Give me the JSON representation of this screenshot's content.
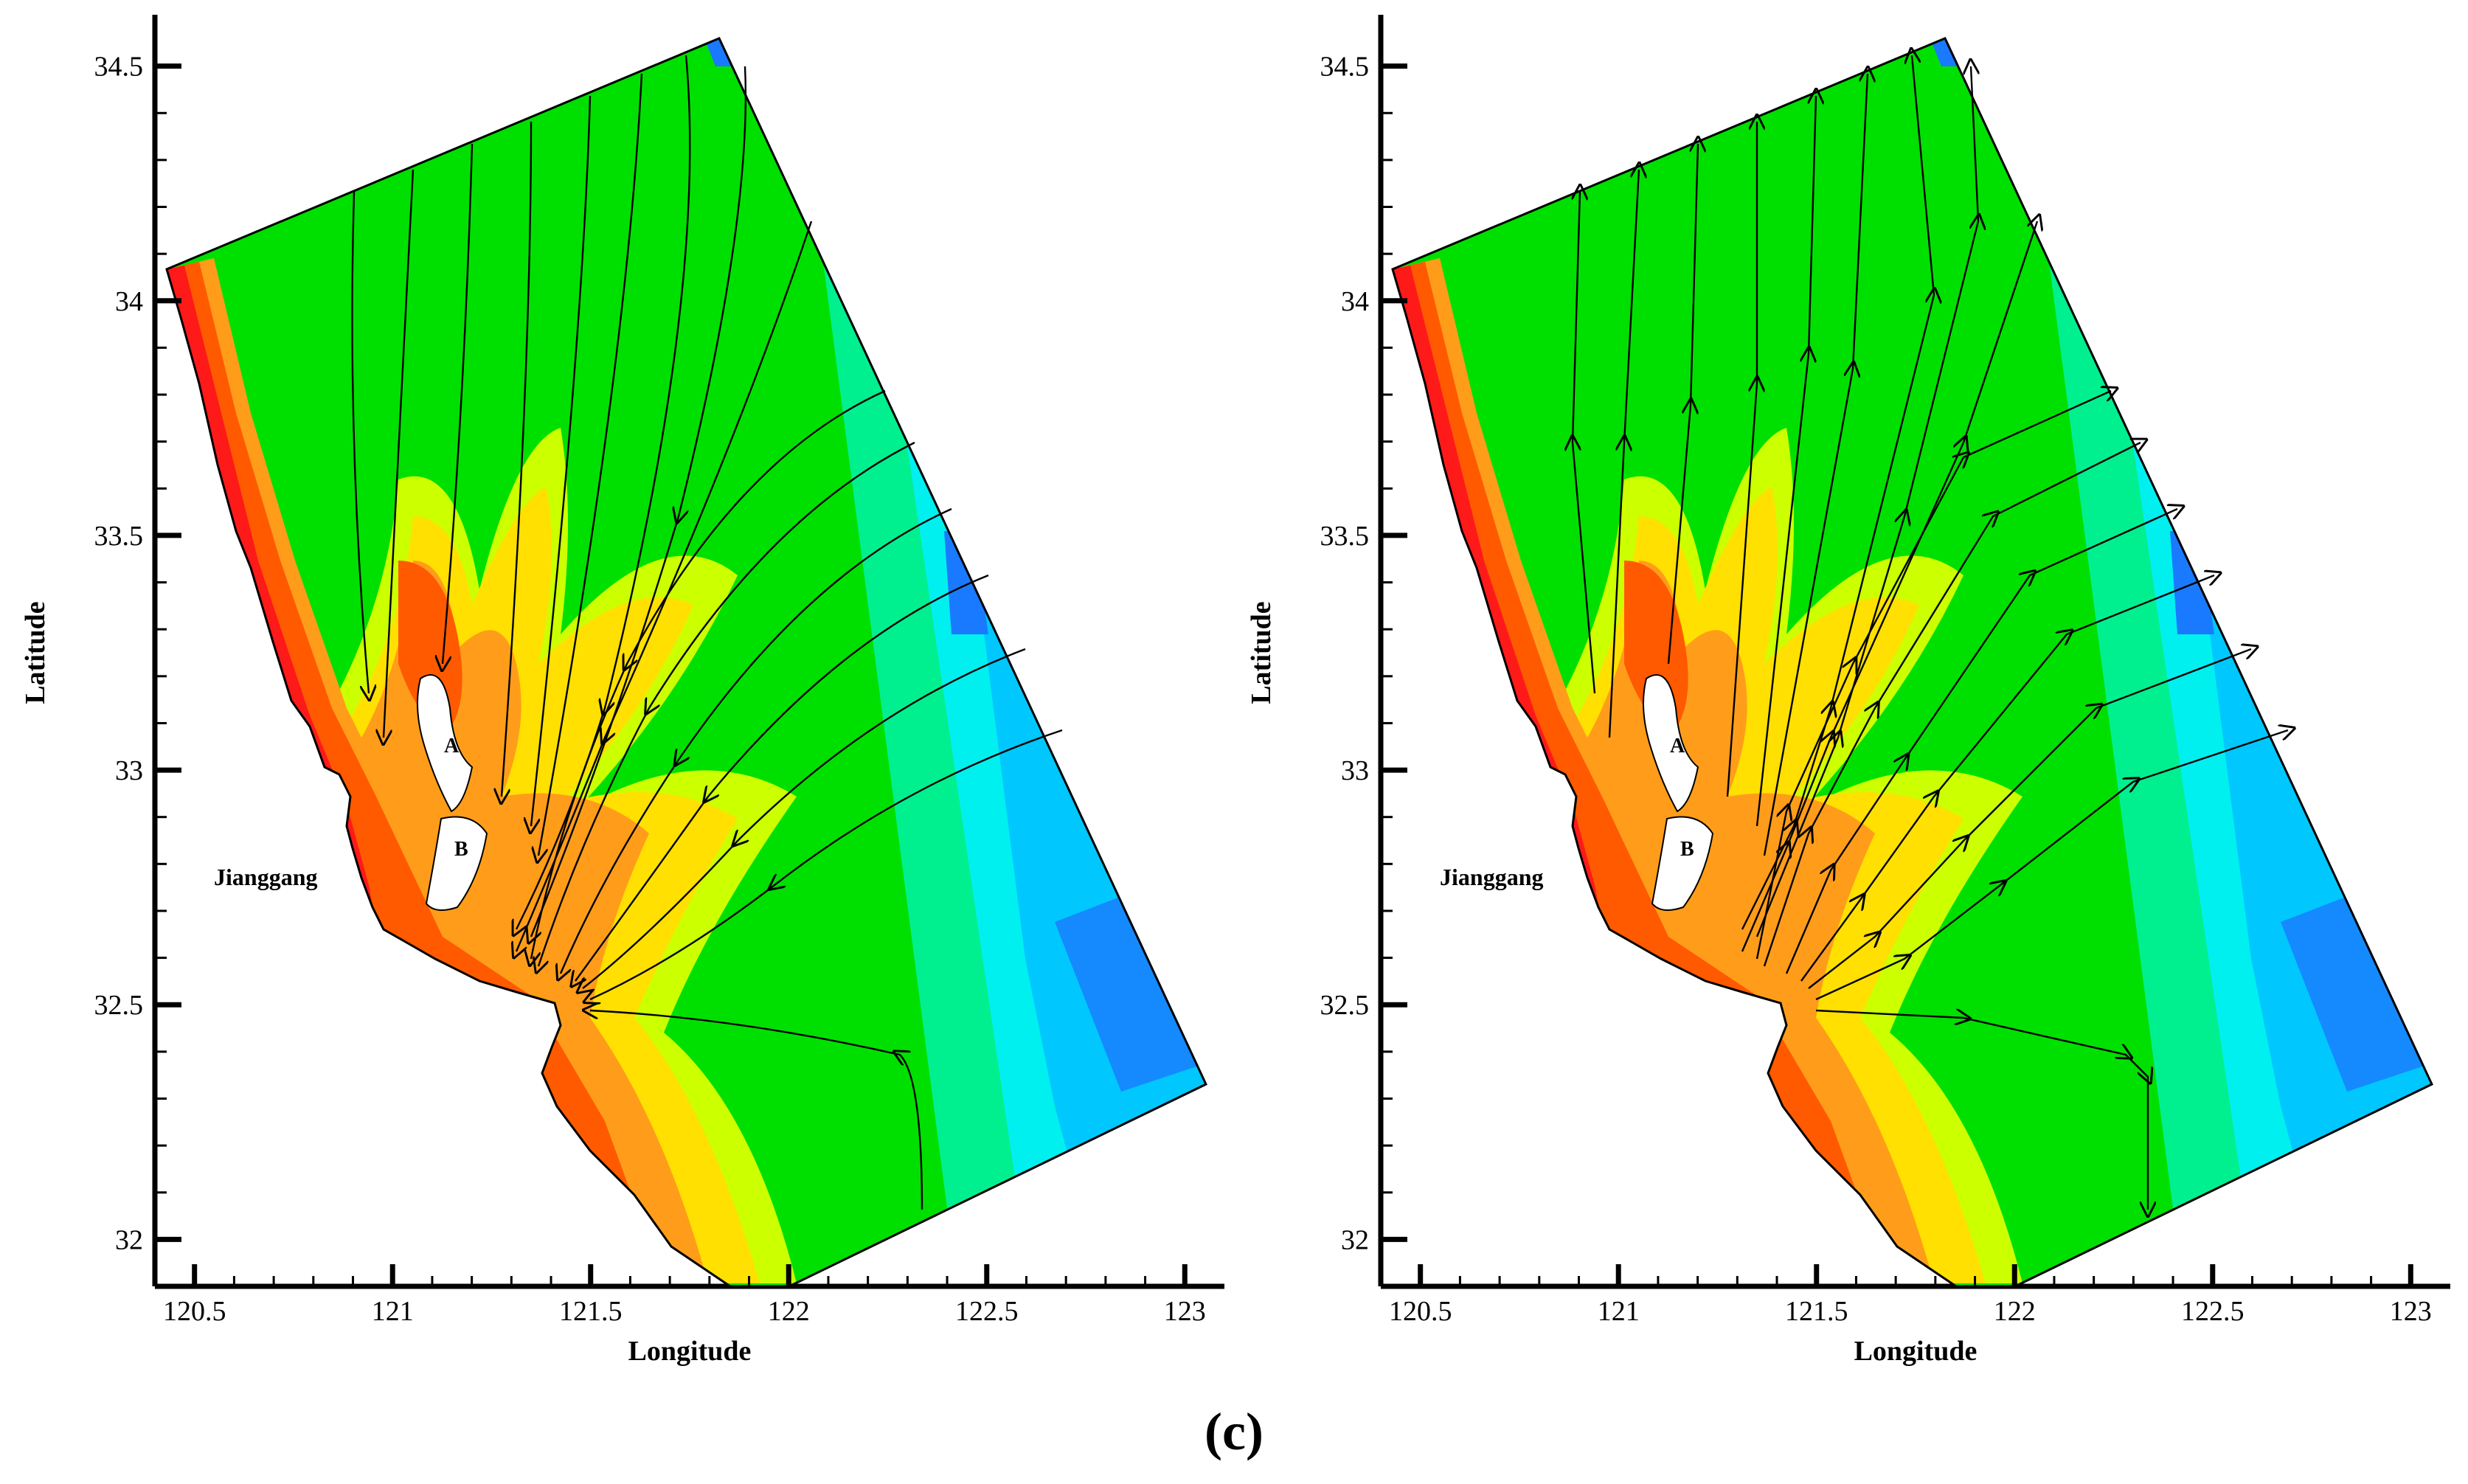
{
  "figure": {
    "caption": "(c)",
    "place_label": "Jianggang",
    "island_labels": [
      "A",
      "B"
    ],
    "xlabel": "Longitude",
    "ylabel": "Latitude"
  },
  "axes": {
    "x_ticks": [
      "120.5",
      "121",
      "121.5",
      "122",
      "122.5",
      "123"
    ],
    "y_ticks": [
      "32",
      "32.5",
      "33",
      "33.5",
      "34",
      "34.5"
    ],
    "x_range": [
      120.4,
      123.1
    ],
    "y_range": [
      31.9,
      34.6
    ]
  },
  "panels": [
    {
      "id": "left",
      "flow_direction": "inflow (arrows point toward Jianggang)"
    },
    {
      "id": "right",
      "flow_direction": "outflow (arrows point away from Jianggang)"
    }
  ],
  "colors": {
    "red": "#ff1a1a",
    "orange_red": "#ff5a00",
    "orange": "#ff9d1a",
    "yellow": "#ffe000",
    "yellow_green": "#ccff00",
    "green": "#00e000",
    "spring": "#00f090",
    "cyan": "#00f0f0",
    "light_blue": "#00c8ff",
    "blue": "#1a7aff",
    "streamline": "#000000"
  }
}
